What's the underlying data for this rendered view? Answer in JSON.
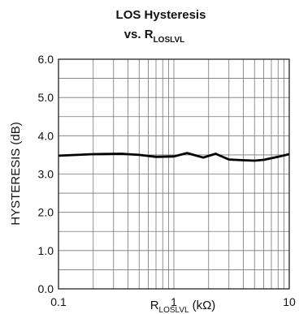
{
  "chart_data": {
    "type": "line",
    "title": "LOS Hysteresis",
    "subtitle": {
      "text": "vs. R",
      "subscript": "LOSLVL"
    },
    "xlabel": {
      "text": "R",
      "subscript": "LOSLVL",
      "unit": "(kΩ)"
    },
    "ylabel": "HYSTERESIS (dB)",
    "x_scale": "log",
    "xlim": [
      0.1,
      10
    ],
    "ylim": [
      0,
      6
    ],
    "x_ticks": [
      {
        "value": 0.1,
        "label": "0.1"
      },
      {
        "value": 1,
        "label": "1"
      },
      {
        "value": 10,
        "label": "10"
      }
    ],
    "y_ticks": [
      {
        "value": 0,
        "label": "0.0"
      },
      {
        "value": 1,
        "label": "1.0"
      },
      {
        "value": 2,
        "label": "2.0"
      },
      {
        "value": 3,
        "label": "3.0"
      },
      {
        "value": 4,
        "label": "4.0"
      },
      {
        "value": 5,
        "label": "5.0"
      },
      {
        "value": 6,
        "label": "6.0"
      }
    ],
    "y_minor_step": 0.5,
    "grid": true,
    "series": [
      {
        "x": [
          0.1,
          0.2,
          0.35,
          0.5,
          0.7,
          1.0,
          1.3,
          1.8,
          2.3,
          3.0,
          4.0,
          5.0,
          6.0,
          8.0,
          10.0
        ],
        "y": [
          3.48,
          3.52,
          3.53,
          3.5,
          3.45,
          3.46,
          3.55,
          3.43,
          3.53,
          3.38,
          3.36,
          3.35,
          3.37,
          3.45,
          3.52
        ]
      }
    ]
  }
}
